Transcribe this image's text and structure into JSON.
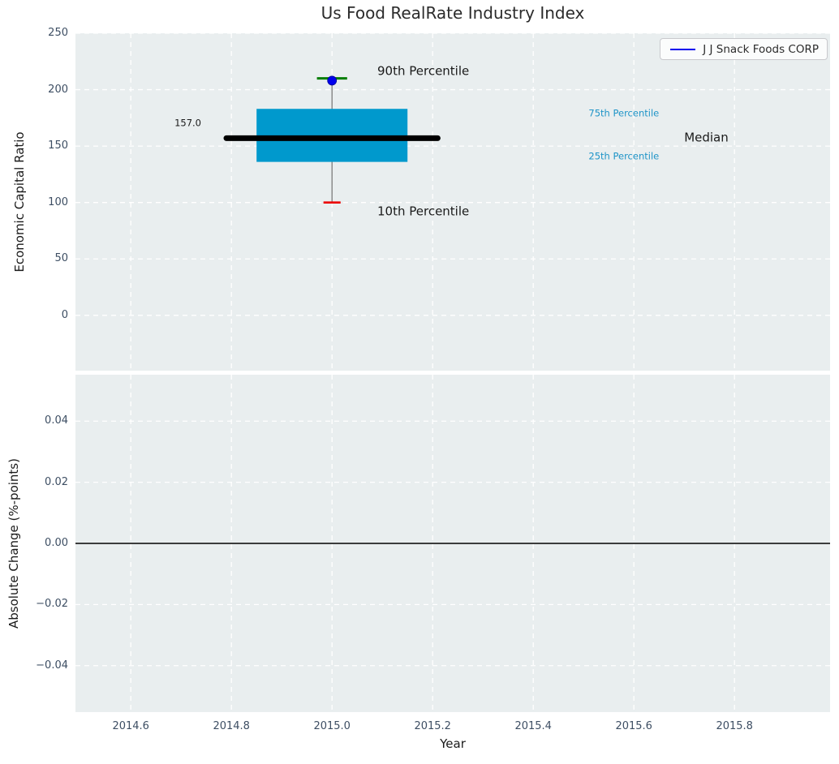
{
  "figure": {
    "title": "Us Food RealRate Industry Index",
    "background": "#ffffff",
    "axes_background": "#e9eeef",
    "grid_color": "#ffffff",
    "tick_color": "#3d4e63",
    "text_color": "#1a1a1a"
  },
  "chart_data": [
    {
      "type": "box",
      "title": "Us Food RealRate Industry Index",
      "ylabel": "Economic Capital Ratio",
      "xlim": [
        2014.49,
        2015.99
      ],
      "ylim": [
        -49,
        250
      ],
      "grid": "dashed-white",
      "yticks": [
        {
          "v": 250,
          "label": "250"
        },
        {
          "v": 200,
          "label": "200"
        },
        {
          "v": 150,
          "label": "150"
        },
        {
          "v": 100,
          "label": "100"
        },
        {
          "v": 50,
          "label": "50"
        },
        {
          "v": 0,
          "label": "0"
        }
      ],
      "box": {
        "x": 2015.0,
        "p10": 100,
        "p25": 136,
        "median": 157,
        "p75": 183,
        "p90": 210,
        "box_half_width": 0.15,
        "median_half_width": 0.21,
        "p90_cap_half_width": 0.03,
        "p10_cap_half_width": 0.017,
        "box_color": "#0099cd",
        "median_color": "#000000",
        "whisker_color": "#7b7b7b",
        "p90_cap_color": "#007d00",
        "p10_cap_color": "#ec0000"
      },
      "company_marker": {
        "name": "J J Snack Foods CORP",
        "x": 2015.0,
        "y": 208,
        "color": "#0000ee"
      },
      "legend": {
        "label": "J J Snack Foods CORP",
        "line_color": "#0000ee",
        "position": "upper right"
      },
      "annotations": [
        {
          "slug": "median-value-label",
          "text": "157.0",
          "x": 2014.74,
          "y": 170,
          "color": "#1a1a1a",
          "size": 11.5,
          "anchor": "end"
        },
        {
          "slug": "annotation-90th-percentile",
          "text": "90th Percentile",
          "x": 2015.09,
          "y": 216,
          "color": "#1a1a1a",
          "size": 15,
          "anchor": "start"
        },
        {
          "slug": "annotation-10th-percentile",
          "text": "10th Percentile",
          "x": 2015.09,
          "y": 92,
          "color": "#1a1a1a",
          "size": 15,
          "anchor": "start"
        },
        {
          "slug": "annotation-75th-percentile",
          "text": "75th Percentile",
          "x": 2015.51,
          "y": 179,
          "color": "#2095c8",
          "size": 11.5,
          "anchor": "start"
        },
        {
          "slug": "annotation-25th-percentile",
          "text": "25th Percentile",
          "x": 2015.51,
          "y": 141,
          "color": "#2095c8",
          "size": 11.5,
          "anchor": "start"
        },
        {
          "slug": "annotation-median",
          "text": "Median",
          "x": 2015.7,
          "y": 157,
          "color": "#1a1a1a",
          "size": 15,
          "anchor": "start"
        }
      ]
    },
    {
      "type": "line",
      "ylabel": "Absolute Change (%-points)",
      "xlabel": "Year",
      "xlim": [
        2014.49,
        2015.99
      ],
      "ylim": [
        -0.0552,
        0.0552
      ],
      "grid": "dashed-white",
      "yticks": [
        {
          "v": 0.04,
          "label": "0.04"
        },
        {
          "v": 0.02,
          "label": "0.02"
        },
        {
          "v": 0.0,
          "label": "0.00"
        },
        {
          "v": -0.02,
          "label": "−0.02"
        },
        {
          "v": -0.04,
          "label": "−0.04"
        }
      ],
      "xticks": [
        {
          "v": 2014.6,
          "label": "2014.6"
        },
        {
          "v": 2014.8,
          "label": "2014.8"
        },
        {
          "v": 2015.0,
          "label": "2015.0"
        },
        {
          "v": 2015.2,
          "label": "2015.2"
        },
        {
          "v": 2015.4,
          "label": "2015.4"
        },
        {
          "v": 2015.6,
          "label": "2015.6"
        },
        {
          "v": 2015.8,
          "label": "2015.8"
        }
      ],
      "zero_line": {
        "y": 0.0,
        "color": "#000000"
      },
      "series": []
    }
  ]
}
